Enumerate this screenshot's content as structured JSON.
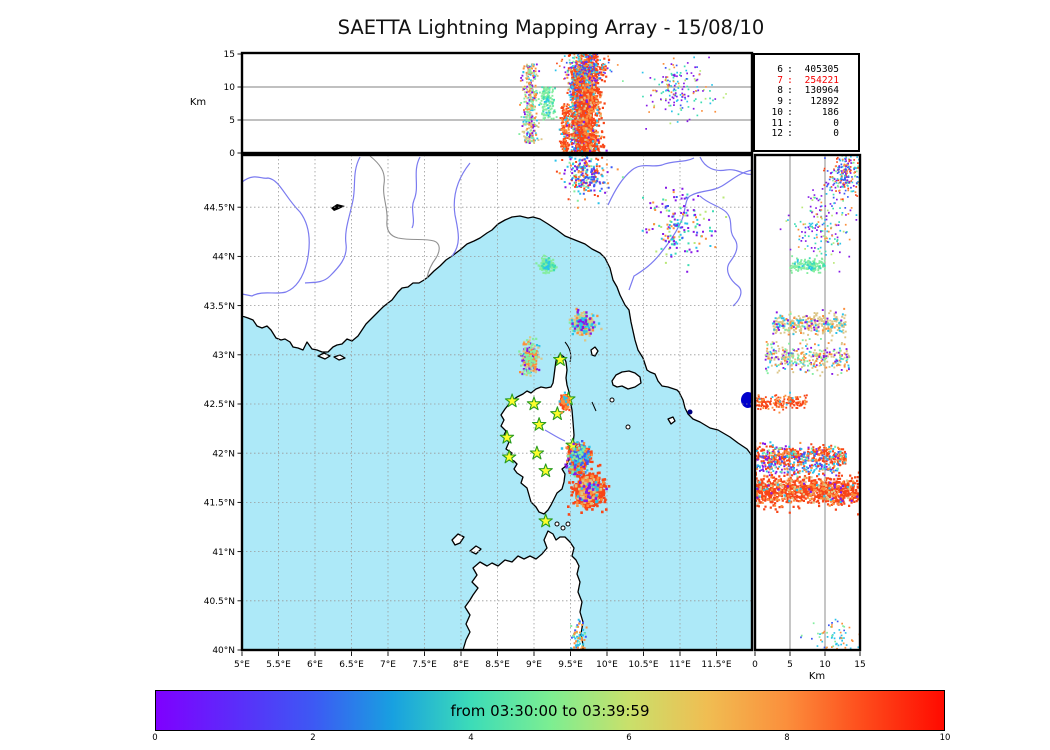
{
  "title": "SAETTA Lightning Mapping Array - 15/08/10",
  "colorbar": {
    "label": "from 03:30:00 to 03:39:59",
    "tick_labels": [
      "0",
      "2",
      "4",
      "6",
      "8",
      "10"
    ],
    "tick_values": [
      0,
      2,
      4,
      6,
      8,
      10
    ],
    "value_range": [
      0,
      10
    ],
    "gradient_stops": [
      [
        0,
        "#7f00ff"
      ],
      [
        0.1,
        "#5c2cfa"
      ],
      [
        0.2,
        "#3d59f4"
      ],
      [
        0.3,
        "#18a0e0"
      ],
      [
        0.4,
        "#3cdcb8"
      ],
      [
        0.5,
        "#7cee92"
      ],
      [
        0.6,
        "#c9e06b"
      ],
      [
        0.7,
        "#f0bd52"
      ],
      [
        0.8,
        "#fb8f3c"
      ],
      [
        0.9,
        "#fe4a1b"
      ],
      [
        1,
        "#ff0a00"
      ]
    ]
  },
  "stats": {
    "rows": [
      [
        "6",
        "405305"
      ],
      [
        "7",
        "254221"
      ],
      [
        "8",
        "130964"
      ],
      [
        "9",
        "12892"
      ],
      [
        "10",
        "186"
      ],
      [
        "11",
        "0"
      ],
      [
        "12",
        "0"
      ]
    ],
    "highlight_station": "7",
    "highlight_color": "#f50000"
  },
  "chart_data": {
    "type": "scatter",
    "title": "SAETTA Lightning Mapping Array - 15/08/10",
    "time_window": "from 03:30:00 to 03:39:59",
    "map_panel": {
      "lon_range": [
        5,
        12
      ],
      "lat_range": [
        40,
        45.03
      ],
      "lon_tick_values": [
        5,
        5.5,
        6,
        6.5,
        7,
        7.5,
        8,
        8.5,
        9,
        9.5,
        10,
        10.5,
        11,
        11.5
      ],
      "lon_tick_labels": [
        "5°E",
        "5.5°E",
        "6°E",
        "6.5°E",
        "7°E",
        "7.5°E",
        "8°E",
        "8.5°E",
        "9°E",
        "9.5°E",
        "10°E",
        "10.5°E",
        "11°E",
        "11.5°E"
      ],
      "lat_tick_values": [
        40,
        40.5,
        41,
        41.5,
        42,
        42.5,
        43,
        43.5,
        44,
        44.5
      ],
      "lat_tick_labels": [
        "40°N",
        "40.5°N",
        "41°N",
        "41.5°N",
        "42°N",
        "42.5°N",
        "43°N",
        "43.5°N",
        "44°N",
        "44.5°N"
      ],
      "grid": true
    },
    "altitude_axis": {
      "label": "Km",
      "range": [
        0,
        15
      ],
      "tick_values": [
        0,
        5,
        10,
        15
      ],
      "tick_labels": [
        "0",
        "5",
        "10",
        "15"
      ],
      "gridlines": [
        5,
        10
      ]
    },
    "stations_lonlat": [
      [
        9.36,
        42.95
      ],
      [
        9.47,
        42.55
      ],
      [
        9.0,
        42.5
      ],
      [
        8.7,
        42.53
      ],
      [
        9.32,
        42.4
      ],
      [
        9.07,
        42.29
      ],
      [
        8.63,
        42.16
      ],
      [
        9.53,
        42.08
      ],
      [
        9.04,
        42.0
      ],
      [
        8.66,
        41.96
      ],
      [
        9.16,
        41.82
      ],
      [
        9.16,
        41.31
      ]
    ],
    "clusters": [
      {
        "name": "cell-ligurian-mint",
        "lon": [
          9.18,
          0.045
        ],
        "lat": [
          43.91,
          0.035
        ],
        "alt": {
          "dist": "uniform",
          "range": [
            5,
            10
          ]
        },
        "n": 150,
        "size": 2.2,
        "colors": [
          [
            "#84eda0",
            0.85
          ],
          [
            "#3eddb4",
            0.1
          ],
          [
            "#29c3ea",
            0.05
          ]
        ]
      },
      {
        "name": "cell-tuscany",
        "lon": [
          11.0,
          0.22
        ],
        "lat": [
          44.3,
          0.18
        ],
        "alt": {
          "dist": "gauss",
          "range": [
            9.5,
            2.2
          ]
        },
        "n": 170,
        "size": 2.0,
        "colors": [
          [
            "#8518e6",
            0.28
          ],
          [
            "#3eddb4",
            0.2
          ],
          [
            "#29c3ea",
            0.18
          ],
          [
            "#fb8f3c",
            0.16
          ],
          [
            "#b9e877",
            0.1
          ],
          [
            "#3d59f4",
            0.08
          ]
        ]
      },
      {
        "name": "cell-sardinia",
        "lon": [
          9.62,
          0.05
        ],
        "lat": [
          40.1,
          0.1
        ],
        "alt": {
          "dist": "gauss",
          "range": [
            11,
            2
          ]
        },
        "n": 80,
        "size": 2.0,
        "colors": [
          [
            "#29c3ea",
            0.4
          ],
          [
            "#fb8f3c",
            0.25
          ],
          [
            "#84eda0",
            0.2
          ],
          [
            "#3d59f4",
            0.15
          ]
        ]
      },
      {
        "name": "cell-north-tan",
        "lon": [
          9.67,
          0.075
        ],
        "lat": [
          43.31,
          0.055
        ],
        "alt": {
          "dist": "uniform",
          "range": [
            2.5,
            13
          ]
        },
        "n": 330,
        "size": 2.3,
        "colors": [
          [
            "#dcc688",
            0.62
          ],
          [
            "#29c3ea",
            0.14
          ],
          [
            "#fb8f3c",
            0.1
          ],
          [
            "#8518e6",
            0.07
          ],
          [
            "#84eda0",
            0.07
          ]
        ]
      },
      {
        "name": "cell-nw-capcorse",
        "lon": [
          8.95,
          0.055
        ],
        "lat": [
          42.97,
          0.075
        ],
        "alt": {
          "dist": "uniform",
          "range": [
            1.5,
            13.5
          ]
        },
        "n": 330,
        "size": 2.2,
        "colors": [
          [
            "#dcc688",
            0.42
          ],
          [
            "#fb8f3c",
            0.14
          ],
          [
            "#8518e6",
            0.16
          ],
          [
            "#29c3ea",
            0.16
          ],
          [
            "#84eda0",
            0.12
          ]
        ]
      },
      {
        "name": "storm-mixed-band",
        "lon": [
          9.58,
          0.06
        ],
        "lat": [
          41.84,
          0.03
        ],
        "alt": {
          "dist": "uniform",
          "range": [
            0,
            12
          ]
        },
        "n": 150,
        "size": 2.2,
        "colors": [
          [
            "#29c3ea",
            0.35
          ],
          [
            "#8518e6",
            0.25
          ],
          [
            "#3d59f4",
            0.15
          ],
          [
            "#fb8f3c",
            0.15
          ],
          [
            "#84eda0",
            0.1
          ]
        ]
      },
      {
        "name": "coastal-cell-bastia",
        "lon": [
          9.42,
          0.03
        ],
        "lat": [
          42.52,
          0.035
        ],
        "alt": {
          "dist": "uniform",
          "range": [
            0,
            7.5
          ]
        },
        "n": 170,
        "size": 2.2,
        "colors": [
          [
            "#f84517",
            0.7
          ],
          [
            "#fb8f3c",
            0.25
          ],
          [
            "#29c3ea",
            0.05
          ]
        ]
      },
      {
        "name": "storm-north-cell",
        "lon": [
          9.62,
          0.07
        ],
        "lat": [
          41.97,
          0.05
        ],
        "alt": {
          "dist": "uniform",
          "range": [
            0,
            13
          ]
        },
        "n": 520,
        "size": 2.4,
        "colors": [
          [
            "#f84517",
            0.62
          ],
          [
            "#fb8f3c",
            0.12
          ],
          [
            "#29c3ea",
            0.1
          ],
          [
            "#8518e6",
            0.09
          ],
          [
            "#3d59f4",
            0.04
          ],
          [
            "#84eda0",
            0.03
          ]
        ]
      },
      {
        "name": "main-storm-core",
        "lon": [
          9.75,
          0.09
        ],
        "lat": [
          41.62,
          0.075
        ],
        "alt": {
          "dist": "uniform",
          "range": [
            0,
            15
          ]
        },
        "n": 950,
        "size": 2.6,
        "colors": [
          [
            "#f84517",
            0.8
          ],
          [
            "#fb8f3c",
            0.13
          ],
          [
            "#dcc688",
            0.03
          ],
          [
            "#29c3ea",
            0.02
          ],
          [
            "#8518e6",
            0.02
          ]
        ]
      },
      {
        "name": "cell-far-north",
        "lon": [
          9.7,
          0.16
        ],
        "lat": [
          44.85,
          0.13
        ],
        "alt": {
          "dist": "gauss",
          "range": [
            13,
            1.3
          ]
        },
        "n": 260,
        "size": 2.0,
        "colors": [
          [
            "#f84517",
            0.22
          ],
          [
            "#fb8f3c",
            0.18
          ],
          [
            "#29c3ea",
            0.18
          ],
          [
            "#3d59f4",
            0.12
          ],
          [
            "#8518e6",
            0.15
          ],
          [
            "#84eda0",
            0.15
          ]
        ]
      }
    ],
    "station_marker": {
      "fill": "#fdfd2c",
      "stroke": "#2a9d1f"
    },
    "sea_color": "#ade9f8",
    "land_color": "#ffffff"
  }
}
